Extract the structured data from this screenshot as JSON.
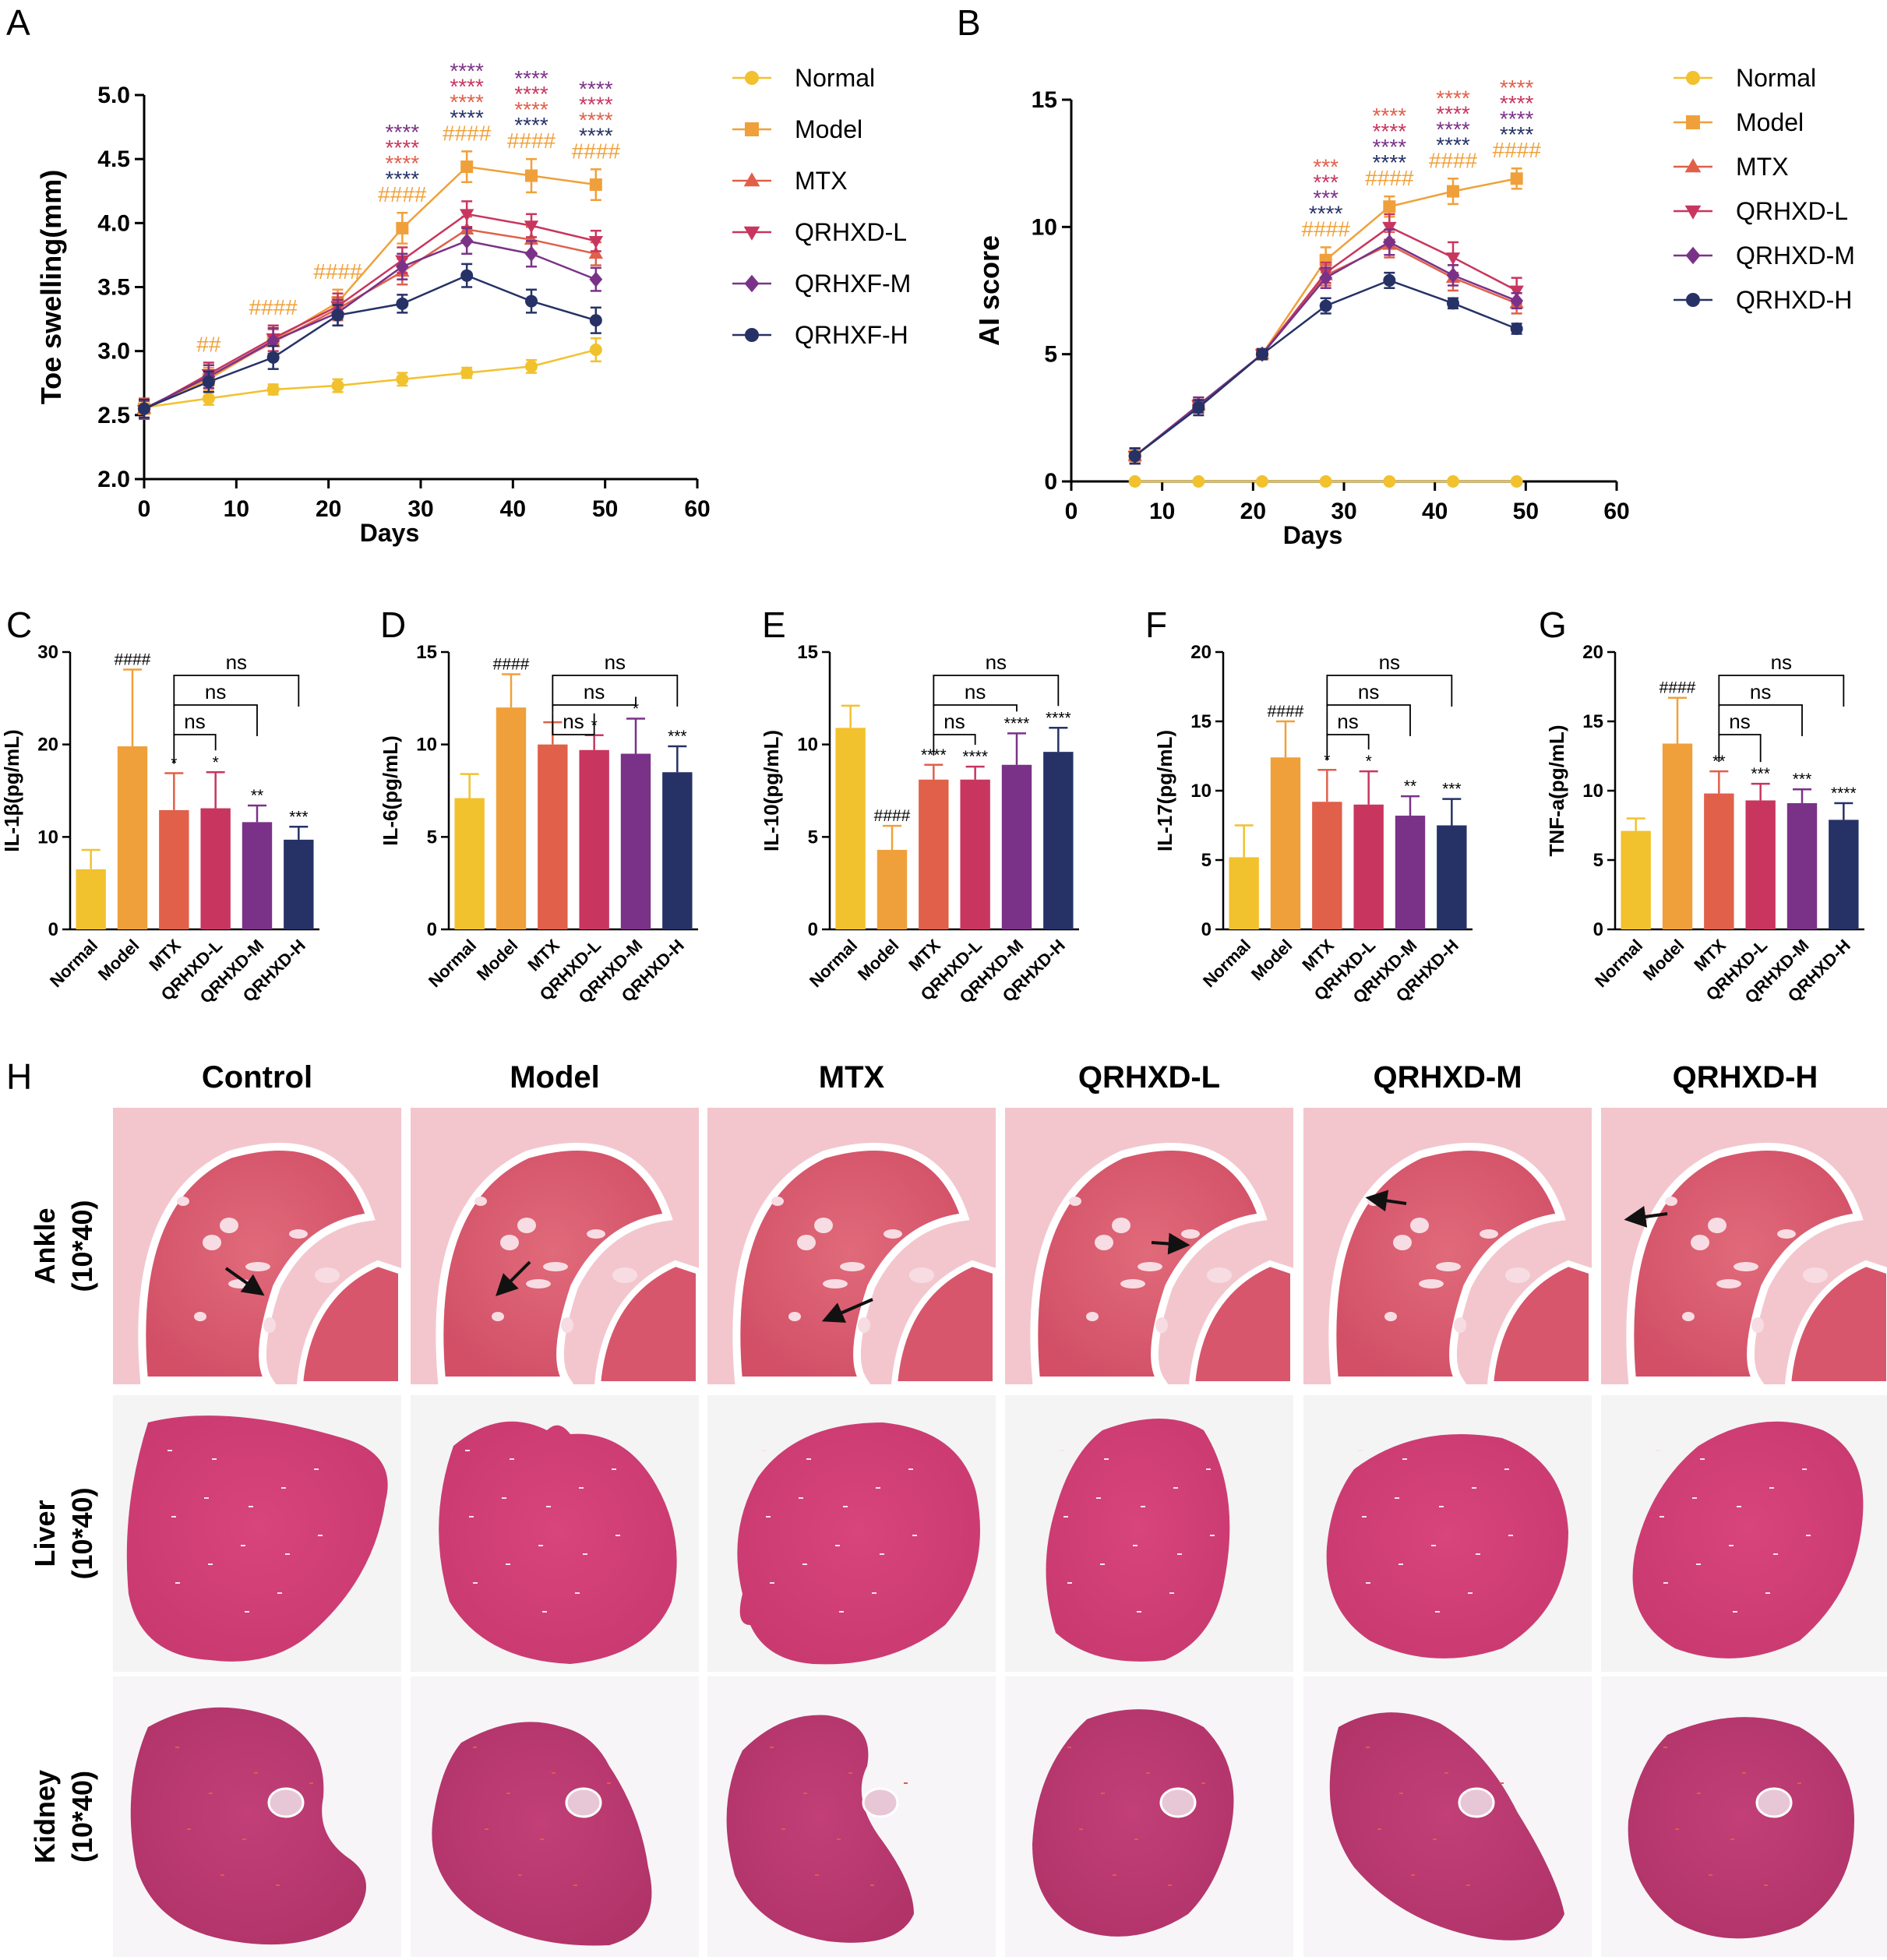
{
  "colors": {
    "Normal": "#f2c12e",
    "Model": "#f0a03a",
    "MTX": "#e0604a",
    "QRHXD-L": "#c8365f",
    "QRHXD-M": "#7a3288",
    "QRHXD-H": "#263266"
  },
  "chart_data": [
    {
      "panel": "A",
      "type": "line",
      "xlabel": "Days",
      "ylabel": "Toe swelling(mm)",
      "xlim": [
        0,
        60
      ],
      "ylim": [
        2.0,
        5.0
      ],
      "xticks": [
        "0",
        "10",
        "20",
        "30",
        "40",
        "50",
        "60"
      ],
      "yticks": [
        "2.0",
        "2.5",
        "3.0",
        "3.5",
        "4.0",
        "4.5",
        "5.0"
      ],
      "x": [
        0,
        7,
        14,
        21,
        28,
        35,
        42,
        49
      ],
      "legend": [
        "Normal",
        "Model",
        "MTX",
        "QRHXD-L",
        "QRHXF-M",
        "QRHXF-H"
      ],
      "series": [
        {
          "name": "Normal",
          "color": "#f2c12e",
          "marker": "circle",
          "values": [
            2.56,
            2.63,
            2.7,
            2.73,
            2.78,
            2.83,
            2.88,
            3.01
          ],
          "err": [
            0.05,
            0.05,
            0.04,
            0.05,
            0.05,
            0.04,
            0.05,
            0.09
          ]
        },
        {
          "name": "Model",
          "color": "#f0a03a",
          "marker": "square",
          "values": [
            2.55,
            2.78,
            3.08,
            3.38,
            3.96,
            4.44,
            4.37,
            4.3
          ],
          "err": [
            0.07,
            0.09,
            0.1,
            0.1,
            0.12,
            0.12,
            0.13,
            0.12
          ]
        },
        {
          "name": "MTX",
          "color": "#e0604a",
          "marker": "triangle",
          "values": [
            2.55,
            2.8,
            3.07,
            3.33,
            3.62,
            3.95,
            3.87,
            3.76
          ],
          "err": [
            0.08,
            0.09,
            0.1,
            0.09,
            0.1,
            0.1,
            0.1,
            0.09
          ]
        },
        {
          "name": "QRHXD-L",
          "color": "#c8365f",
          "marker": "triangle-down",
          "values": [
            2.54,
            2.82,
            3.1,
            3.35,
            3.71,
            4.07,
            3.98,
            3.86
          ],
          "err": [
            0.07,
            0.09,
            0.1,
            0.1,
            0.1,
            0.1,
            0.09,
            0.08
          ]
        },
        {
          "name": "QRHXF-M",
          "color": "#7a3288",
          "marker": "diamond",
          "values": [
            2.55,
            2.8,
            3.08,
            3.3,
            3.66,
            3.86,
            3.76,
            3.56
          ],
          "err": [
            0.07,
            0.09,
            0.1,
            0.1,
            0.1,
            0.1,
            0.1,
            0.09
          ]
        },
        {
          "name": "QRHXF-H",
          "color": "#263266",
          "marker": "circle",
          "values": [
            2.55,
            2.76,
            2.95,
            3.28,
            3.37,
            3.59,
            3.39,
            3.24
          ],
          "err": [
            0.07,
            0.08,
            0.09,
            0.08,
            0.07,
            0.09,
            0.09,
            0.1
          ]
        }
      ],
      "annotations": [
        {
          "x": 7,
          "marks": [
            {
              "text": "##",
              "color": "#f0a03a"
            }
          ]
        },
        {
          "x": 14,
          "marks": [
            {
              "text": "####",
              "color": "#f0a03a"
            }
          ]
        },
        {
          "x": 21,
          "marks": [
            {
              "text": "####",
              "color": "#f0a03a"
            }
          ]
        },
        {
          "x": 28,
          "marks": [
            {
              "text": "****",
              "color": "#7a3288"
            },
            {
              "text": "****",
              "color": "#c8365f"
            },
            {
              "text": "****",
              "color": "#e0604a"
            },
            {
              "text": "****",
              "color": "#263266"
            },
            {
              "text": "####",
              "color": "#f0a03a"
            }
          ]
        },
        {
          "x": 35,
          "marks": [
            {
              "text": "****",
              "color": "#7a3288"
            },
            {
              "text": "****",
              "color": "#c8365f"
            },
            {
              "text": "****",
              "color": "#e0604a"
            },
            {
              "text": "****",
              "color": "#263266"
            },
            {
              "text": "####",
              "color": "#f0a03a"
            }
          ]
        },
        {
          "x": 42,
          "marks": [
            {
              "text": "****",
              "color": "#7a3288"
            },
            {
              "text": "****",
              "color": "#c8365f"
            },
            {
              "text": "****",
              "color": "#e0604a"
            },
            {
              "text": "****",
              "color": "#263266"
            },
            {
              "text": "####",
              "color": "#f0a03a"
            }
          ]
        },
        {
          "x": 49,
          "marks": [
            {
              "text": "****",
              "color": "#7a3288"
            },
            {
              "text": "****",
              "color": "#c8365f"
            },
            {
              "text": "****",
              "color": "#e0604a"
            },
            {
              "text": "****",
              "color": "#263266"
            },
            {
              "text": "####",
              "color": "#f0a03a"
            }
          ]
        }
      ]
    },
    {
      "panel": "B",
      "type": "line",
      "xlabel": "Days",
      "ylabel": "AI score",
      "xlim": [
        0,
        60
      ],
      "ylim": [
        0,
        15
      ],
      "xticks": [
        "0",
        "10",
        "20",
        "30",
        "40",
        "50",
        "60"
      ],
      "yticks": [
        "0",
        "5",
        "10",
        "15"
      ],
      "x": [
        7,
        14,
        21,
        28,
        35,
        42,
        49
      ],
      "legend": [
        "Normal",
        "Model",
        "MTX",
        "QRHXD-L",
        "QRHXD-M",
        "QRHXD-H"
      ],
      "series": [
        {
          "name": "Normal",
          "color": "#f2c12e",
          "marker": "circle",
          "values": [
            0,
            0,
            0,
            0,
            0,
            0,
            0
          ],
          "err": [
            0,
            0,
            0,
            0,
            0,
            0,
            0
          ]
        },
        {
          "name": "Model",
          "color": "#f0a03a",
          "marker": "square",
          "values": [
            1.0,
            3.0,
            5.0,
            8.7,
            10.8,
            11.4,
            11.9
          ],
          "err": [
            0.3,
            0.3,
            0.2,
            0.5,
            0.4,
            0.5,
            0.4
          ]
        },
        {
          "name": "MTX",
          "color": "#e0604a",
          "marker": "triangle",
          "values": [
            1.0,
            3.0,
            5.0,
            8.1,
            9.3,
            8.0,
            7.0
          ],
          "err": [
            0.3,
            0.3,
            0.2,
            0.4,
            0.5,
            0.5,
            0.4
          ]
        },
        {
          "name": "QRHXD-L",
          "color": "#c8365f",
          "marker": "triangle-down",
          "values": [
            1.0,
            3.0,
            5.0,
            8.2,
            10.0,
            8.8,
            7.5
          ],
          "err": [
            0.3,
            0.3,
            0.2,
            0.4,
            0.5,
            0.6,
            0.5
          ]
        },
        {
          "name": "QRHXD-M",
          "color": "#7a3288",
          "marker": "diamond",
          "values": [
            1.0,
            3.0,
            5.0,
            8.0,
            9.4,
            8.1,
            7.1
          ],
          "err": [
            0.3,
            0.3,
            0.2,
            0.4,
            0.5,
            0.4,
            0.3
          ]
        },
        {
          "name": "QRHXD-H",
          "color": "#263266",
          "marker": "circle",
          "values": [
            1.0,
            2.9,
            5.0,
            6.9,
            7.9,
            7.0,
            6.0
          ],
          "err": [
            0.3,
            0.3,
            0.2,
            0.3,
            0.3,
            0.2,
            0.2
          ]
        }
      ],
      "annotations": [
        {
          "x": 28,
          "marks": [
            {
              "text": "***",
              "color": "#e0604a"
            },
            {
              "text": "***",
              "color": "#c8365f"
            },
            {
              "text": "***",
              "color": "#7a3288"
            },
            {
              "text": "****",
              "color": "#263266"
            },
            {
              "text": "####",
              "color": "#f0a03a"
            }
          ]
        },
        {
          "x": 35,
          "marks": [
            {
              "text": "****",
              "color": "#e0604a"
            },
            {
              "text": "****",
              "color": "#c8365f"
            },
            {
              "text": "****",
              "color": "#7a3288"
            },
            {
              "text": "****",
              "color": "#263266"
            },
            {
              "text": "####",
              "color": "#f0a03a"
            }
          ]
        },
        {
          "x": 42,
          "marks": [
            {
              "text": "****",
              "color": "#e0604a"
            },
            {
              "text": "****",
              "color": "#c8365f"
            },
            {
              "text": "****",
              "color": "#7a3288"
            },
            {
              "text": "****",
              "color": "#263266"
            },
            {
              "text": "####",
              "color": "#f0a03a"
            }
          ]
        },
        {
          "x": 49,
          "marks": [
            {
              "text": "****",
              "color": "#e0604a"
            },
            {
              "text": "****",
              "color": "#c8365f"
            },
            {
              "text": "****",
              "color": "#7a3288"
            },
            {
              "text": "****",
              "color": "#263266"
            },
            {
              "text": "####",
              "color": "#f0a03a"
            }
          ]
        }
      ]
    },
    {
      "panel": "C",
      "type": "bar",
      "ylabel": "IL-1β(pg/mL)",
      "ylim": [
        0,
        30
      ],
      "yticks": [
        "0",
        "10",
        "20",
        "30"
      ],
      "categories": [
        "Normal",
        "Model",
        "MTX",
        "QRHXD-L",
        "QRHXD-M",
        "QRHXD-H"
      ],
      "values": [
        6.5,
        19.8,
        12.9,
        13.1,
        11.6,
        9.7
      ],
      "err": [
        2.1,
        8.3,
        4.0,
        3.9,
        1.8,
        1.4
      ],
      "labels": [
        "",
        "####",
        "*",
        "*",
        "**",
        "***"
      ],
      "brackets": [
        {
          "from": 2,
          "to": 3,
          "text": "ns"
        },
        {
          "from": 2,
          "to": 4,
          "text": "ns"
        },
        {
          "from": 2,
          "to": 5,
          "text": "ns"
        }
      ]
    },
    {
      "panel": "D",
      "type": "bar",
      "ylabel": "IL-6(pg/mL)",
      "ylim": [
        0,
        15
      ],
      "yticks": [
        "0",
        "5",
        "10",
        "15"
      ],
      "categories": [
        "Normal",
        "Model",
        "MTX",
        "QRHXD-L",
        "QRHXD-M",
        "QRHXD-H"
      ],
      "values": [
        7.1,
        12.0,
        10.0,
        9.7,
        9.5,
        8.5
      ],
      "err": [
        1.3,
        1.8,
        1.2,
        0.8,
        1.9,
        1.4
      ],
      "labels": [
        "",
        "####",
        "",
        "*",
        "*",
        "***"
      ],
      "brackets": [
        {
          "from": 2,
          "to": 3,
          "text": "ns"
        },
        {
          "from": 2,
          "to": 4,
          "text": "ns"
        },
        {
          "from": 2,
          "to": 5,
          "text": "ns"
        }
      ]
    },
    {
      "panel": "E",
      "type": "bar",
      "ylabel": "IL-10(pg/mL)",
      "ylim": [
        0,
        15
      ],
      "yticks": [
        "0",
        "5",
        "10",
        "15"
      ],
      "categories": [
        "Normal",
        "Model",
        "MTX",
        "QRHXD-L",
        "QRHXD-M",
        "QRHXD-H"
      ],
      "values": [
        10.9,
        4.3,
        8.1,
        8.1,
        8.9,
        9.6
      ],
      "err": [
        1.2,
        1.3,
        0.8,
        0.7,
        1.7,
        1.3
      ],
      "labels": [
        "",
        "####",
        "****",
        "****",
        "****",
        "****"
      ],
      "brackets": [
        {
          "from": 2,
          "to": 3,
          "text": "ns"
        },
        {
          "from": 2,
          "to": 4,
          "text": "ns"
        },
        {
          "from": 2,
          "to": 5,
          "text": "ns"
        }
      ]
    },
    {
      "panel": "F",
      "type": "bar",
      "ylabel": "IL-17(pg/mL)",
      "ylim": [
        0,
        20
      ],
      "yticks": [
        "0",
        "5",
        "10",
        "15",
        "20"
      ],
      "categories": [
        "Normal",
        "Model",
        "MTX",
        "QRHXD-L",
        "QRHXD-M",
        "QRHXD-H"
      ],
      "values": [
        5.2,
        12.4,
        9.2,
        9.0,
        8.2,
        7.5
      ],
      "err": [
        2.3,
        2.6,
        2.3,
        2.4,
        1.4,
        1.9
      ],
      "labels": [
        "",
        "####",
        "*",
        "*",
        "**",
        "***"
      ],
      "brackets": [
        {
          "from": 2,
          "to": 3,
          "text": "ns"
        },
        {
          "from": 2,
          "to": 4,
          "text": "ns"
        },
        {
          "from": 2,
          "to": 5,
          "text": "ns"
        }
      ]
    },
    {
      "panel": "G",
      "type": "bar",
      "ylabel": "TNF-a(pg/mL)",
      "ylim": [
        0,
        20
      ],
      "yticks": [
        "0",
        "5",
        "10",
        "15",
        "20"
      ],
      "categories": [
        "Normal",
        "Model",
        "MTX",
        "QRHXD-L",
        "QRHXD-M",
        "QRHXD-H"
      ],
      "values": [
        7.1,
        13.4,
        9.8,
        9.3,
        9.1,
        7.9
      ],
      "err": [
        0.9,
        3.3,
        1.6,
        1.2,
        1.0,
        1.2
      ],
      "labels": [
        "",
        "####",
        "**",
        "***",
        "***",
        "****"
      ],
      "brackets": [
        {
          "from": 2,
          "to": 3,
          "text": "ns"
        },
        {
          "from": 2,
          "to": 4,
          "text": "ns"
        },
        {
          "from": 2,
          "to": 5,
          "text": "ns"
        }
      ]
    }
  ],
  "histology": {
    "panel": "H",
    "columns": [
      "Control",
      "Model",
      "MTX",
      "QRHXD-L",
      "QRHXD-M",
      "QRHXD-H"
    ],
    "rows": [
      {
        "tissue": "Ankle",
        "scale": "(10*40)"
      },
      {
        "tissue": "Liver",
        "scale": "(10*40)"
      },
      {
        "tissue": "Kidney",
        "scale": "(10*40)"
      }
    ]
  }
}
